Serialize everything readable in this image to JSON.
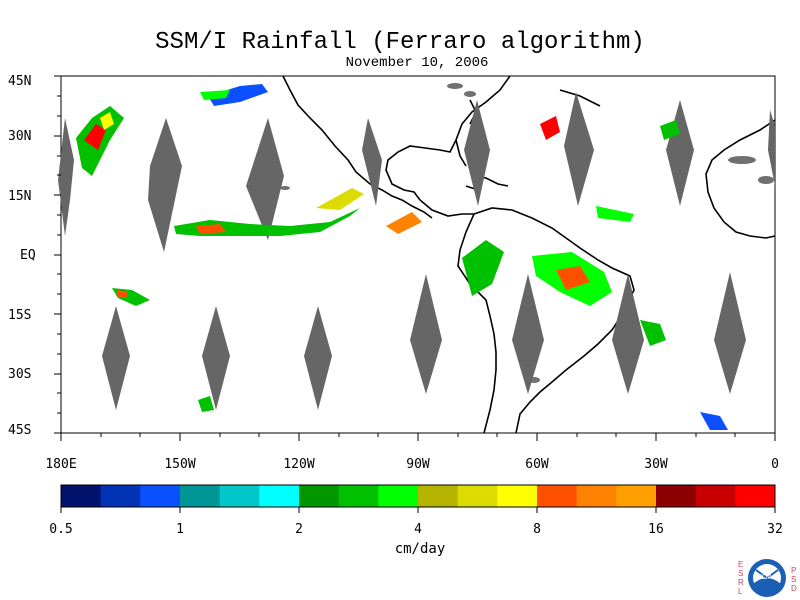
{
  "title": "SSM/I Rainfall (Ferraro algorithm)",
  "subtitle": "November 10, 2006",
  "lat_labels": [
    "45N",
    "30N",
    "15N",
    "EQ",
    "15S",
    "30S",
    "45S"
  ],
  "lon_labels": [
    "180E",
    "150W",
    "120W",
    "90W",
    "60W",
    "30W",
    "0"
  ],
  "colorbar": {
    "colors": [
      "#00126b",
      "#0033b5",
      "#0a50ff",
      "#009696",
      "#00c8c8",
      "#00ffff",
      "#009600",
      "#00c000",
      "#00ff00",
      "#b4b400",
      "#dcdc00",
      "#ffff00",
      "#ff5000",
      "#ff8200",
      "#ffa000",
      "#8c0000",
      "#c80000",
      "#ff0000"
    ],
    "tick_labels": [
      "0.5",
      "1",
      "2",
      "4",
      "8",
      "16",
      "32"
    ],
    "units": "cm/day"
  },
  "logo": {
    "left_letters": [
      "E",
      "S",
      "R",
      "L"
    ],
    "right_letters": [
      "P",
      "S",
      "D"
    ],
    "center_text": "NOAA"
  }
}
